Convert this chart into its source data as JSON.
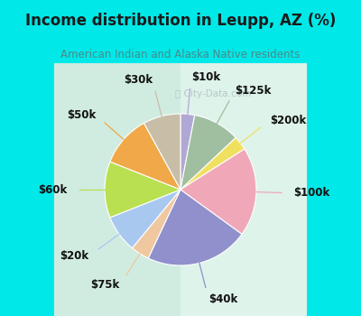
{
  "title": "Income distribution in Leupp, AZ (%)",
  "subtitle": "American Indian and Alaska Native residents",
  "title_color": "#1a1a1a",
  "subtitle_color": "#4a8a8a",
  "bg_cyan": "#00e8e8",
  "bg_chart_left": "#c8edd8",
  "bg_chart_right": "#e8f8f0",
  "watermark": "ⓘ City-Data.com",
  "slices": [
    {
      "label": "$10k",
      "value": 3,
      "color": "#b0a8d4"
    },
    {
      "label": "$125k",
      "value": 10,
      "color": "#a0bea0"
    },
    {
      "label": "$200k",
      "value": 3,
      "color": "#f0e060"
    },
    {
      "label": "$100k",
      "value": 19,
      "color": "#f0a8b8"
    },
    {
      "label": "$40k",
      "value": 22,
      "color": "#9090cc"
    },
    {
      "label": "$75k",
      "value": 4,
      "color": "#f0c8a0"
    },
    {
      "label": "$20k",
      "value": 8,
      "color": "#a8c8f0"
    },
    {
      "label": "$60k",
      "value": 12,
      "color": "#b8e050"
    },
    {
      "label": "$50k",
      "value": 11,
      "color": "#f0a848"
    },
    {
      "label": "$30k",
      "value": 8,
      "color": "#c8bea8"
    }
  ],
  "label_fontsize": 8.5,
  "label_color": "#111111"
}
